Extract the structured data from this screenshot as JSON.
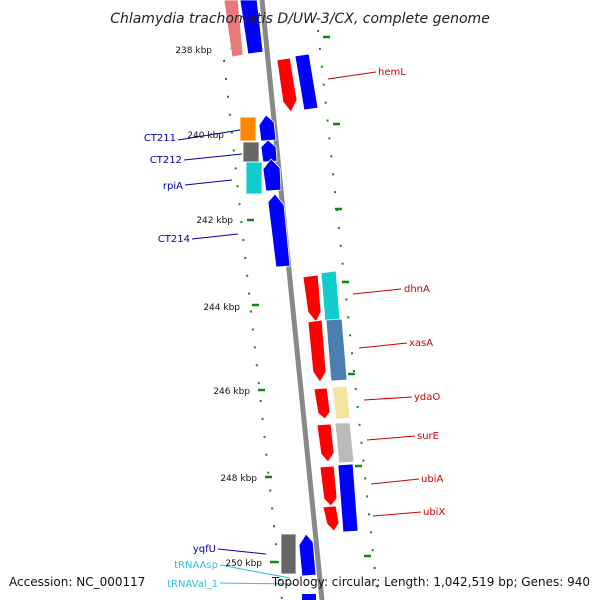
{
  "title": "Chlamydia trachomatis D/UW-3/CX, complete genome",
  "accession": "Accession: NC_000117",
  "topology": "Topology: circular; Length: 1,042,519 bp; Genes: 940",
  "ticks": [
    "238 kbp",
    "240 kbp",
    "242 kbp",
    "244 kbp",
    "246 kbp",
    "248 kbp",
    "250 kbp"
  ],
  "colors": {
    "forward_cds": "#0000ff",
    "reverse_cds": "#ff0000",
    "left_label": "#0000aa",
    "right_label": "#cc0000",
    "trna_label": "#33bbdd",
    "backbone": "#888888",
    "ticks": "#118811"
  },
  "genes_left": [
    {
      "name": "CT211",
      "icon": "orange-box"
    },
    {
      "name": "CT212",
      "icon": "gray-box"
    },
    {
      "name": "rpiA",
      "icon": "cyan-box"
    },
    {
      "name": "CT214",
      "icon": "blue-arrow"
    },
    {
      "name": "yqfU",
      "icon": "gray-box"
    },
    {
      "name": "tRNAAsp",
      "icon": "trna"
    },
    {
      "name": "tRNAVal_1",
      "icon": "trna"
    }
  ],
  "genes_right": [
    {
      "name": "hemL"
    },
    {
      "name": "dhnA"
    },
    {
      "name": "xasA"
    },
    {
      "name": "ydaO"
    },
    {
      "name": "surE"
    },
    {
      "name": "ubiA"
    },
    {
      "name": "ubiX"
    }
  ]
}
